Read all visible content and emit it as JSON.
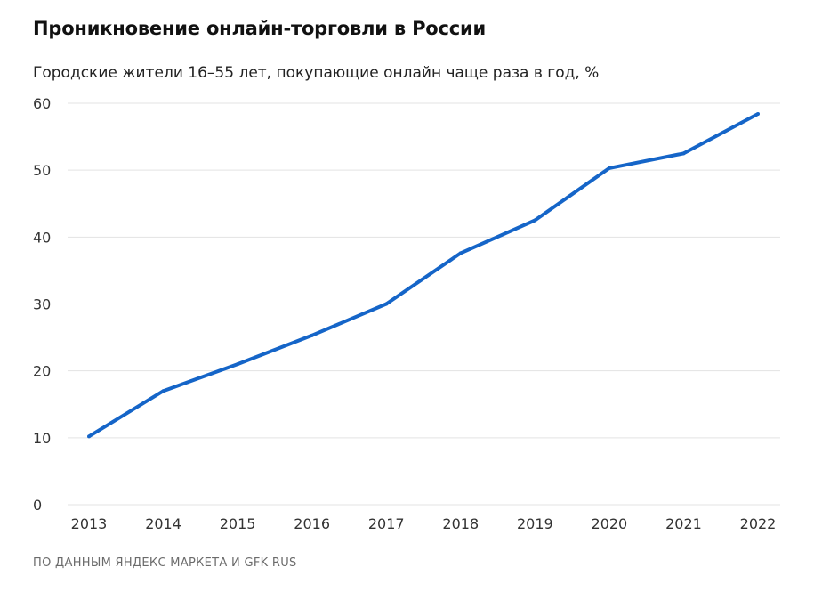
{
  "header": {
    "title": "Проникновение онлайн-торговли в России",
    "subtitle": "Городские жители 16–55 лет, покупающие онлайн чаще раза в год, %"
  },
  "footer": {
    "source": "ПО ДАННЫМ ЯНДЕКС МАРКЕТА И GFK RUS"
  },
  "colors": {
    "line": "#1565c8",
    "grid": "#e3e3e3",
    "text": "#333333"
  },
  "chart_data": {
    "type": "line",
    "title": "Проникновение онлайн-торговли в России",
    "subtitle": "Городские жители 16–55 лет, покупающие онлайн чаще раза в год, %",
    "x": [
      "2013",
      "2014",
      "2015",
      "2016",
      "2017",
      "2018",
      "2019",
      "2020",
      "2021",
      "2022"
    ],
    "series": [
      {
        "values": [
          10.2,
          17,
          21,
          25.3,
          30,
          37.6,
          42.5,
          50.3,
          52.5,
          58.4
        ]
      }
    ],
    "ylim": [
      0,
      60
    ],
    "yticks": [
      0,
      10,
      20,
      30,
      40,
      50,
      60
    ],
    "grid": true,
    "legend": "none"
  }
}
